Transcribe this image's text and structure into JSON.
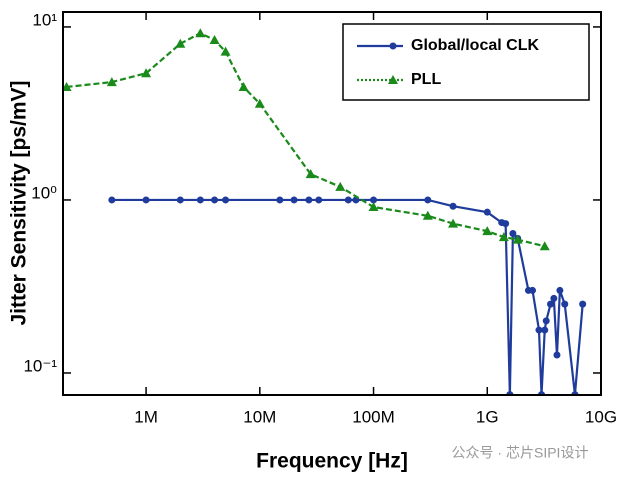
{
  "chart_data": {
    "type": "line",
    "x_label": "Frequency [Hz]",
    "y_label": "Jitter Sensitivity [ps/mV]",
    "watermark": "公众号 · 芯片SIPI设计",
    "xscale": "log",
    "yscale": "log",
    "xlim": [
      186000,
      10000000000
    ],
    "ylim": [
      0.0746,
      12.2
    ],
    "xticks": [
      {
        "value": 1000000,
        "label": "1M"
      },
      {
        "value": 10000000,
        "label": "10M"
      },
      {
        "value": 100000000,
        "label": "100M"
      },
      {
        "value": 1000000000,
        "label": "1G"
      },
      {
        "value": 10000000000,
        "label": "10G"
      }
    ],
    "yticks": [
      {
        "value": 10,
        "label": "10¹"
      },
      {
        "value": 1,
        "label": "10⁰"
      },
      {
        "value": 0.1,
        "label": "10⁻¹"
      }
    ],
    "legend": "upper right",
    "series": [
      {
        "name": "Global/local CLK",
        "color": "#1f3c9c",
        "marker": "circle",
        "linestyle": "solid",
        "x": [
          500000,
          1000000,
          2000000,
          3000000,
          4000000,
          5000000,
          15000000,
          20000000,
          27000000,
          33000000,
          60000000,
          70000000,
          100000000,
          300000000,
          500000000,
          1000000000,
          1340000000,
          1450000000,
          1580000000,
          1680000000,
          1850000000,
          2300000000,
          2500000000,
          2850000000,
          3000000000,
          3200000000,
          3300000000,
          3600000000,
          3850000000,
          4100000000,
          4350000000,
          4800000000,
          5900000000,
          6900000000
        ],
        "values": [
          1,
          1,
          1,
          1,
          1,
          1,
          1,
          1,
          1,
          1,
          1,
          1,
          1,
          1,
          0.92,
          0.85,
          0.74,
          0.73,
          0.075,
          0.64,
          0.6,
          0.3,
          0.3,
          0.177,
          0.075,
          0.177,
          0.2,
          0.25,
          0.27,
          0.127,
          0.3,
          0.25,
          0.075,
          0.25
        ]
      },
      {
        "name": "PLL",
        "color": "#1a8a1a",
        "marker": "triangle",
        "linestyle": "dashed",
        "x": [
          200000,
          500000,
          1000000,
          2000000,
          3000000,
          4000000,
          5000000,
          7200000,
          10000000,
          28000000,
          51000000,
          100000000,
          300000000,
          500000000,
          1000000000,
          1400000000,
          1850000000,
          3200000000
        ],
        "values": [
          4.5,
          4.8,
          5.4,
          8.0,
          9.2,
          8.4,
          7.2,
          4.5,
          3.6,
          1.41,
          1.19,
          0.91,
          0.81,
          0.73,
          0.66,
          0.61,
          0.59,
          0.54
        ]
      }
    ]
  }
}
